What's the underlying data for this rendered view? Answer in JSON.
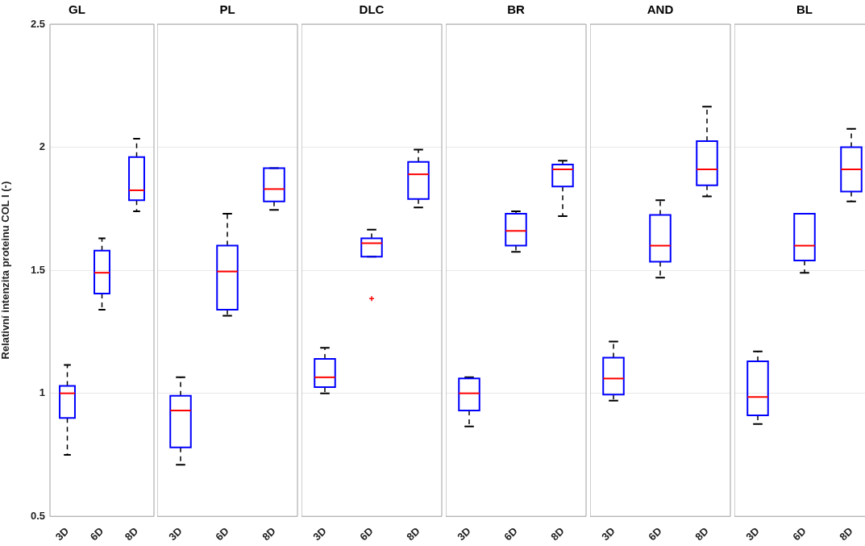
{
  "chart_data": [
    {
      "type": "box",
      "title": "GL",
      "ylabel": "Relativní intenzita proteinu COL I (-)",
      "categories": [
        "3D",
        "6D",
        "8D"
      ],
      "ylim": [
        0.5,
        2.5
      ],
      "yticks": [
        0.5,
        1,
        1.5,
        2,
        2.5
      ],
      "grid": "y",
      "series": [
        {
          "color": "#0000ff",
          "boxes": [
            {
              "low": 0.75,
              "q1": 0.9,
              "median": 1.0,
              "q3": 1.03,
              "high": 1.115
            },
            {
              "low": 1.34,
              "q1": 1.405,
              "median": 1.49,
              "q3": 1.58,
              "high": 1.63
            },
            {
              "low": 1.74,
              "q1": 1.785,
              "median": 1.825,
              "q3": 1.96,
              "high": 2.035
            }
          ]
        }
      ]
    },
    {
      "type": "box",
      "title": "PL",
      "categories": [
        "3D",
        "6D",
        "8D"
      ],
      "ylim": [
        0.5,
        2.5
      ],
      "yticks": [
        0.5,
        1,
        1.5,
        2,
        2.5
      ],
      "grid": "y",
      "tick_labels": "x",
      "series": [
        {
          "color": "#0000ff",
          "boxes": [
            {
              "low": 0.71,
              "q1": 0.78,
              "median": 0.93,
              "q3": 0.99,
              "high": 1.065
            },
            {
              "low": 1.315,
              "q1": 1.34,
              "median": 1.495,
              "q3": 1.6,
              "high": 1.73
            },
            {
              "low": 1.745,
              "q1": 1.78,
              "median": 1.83,
              "q3": 1.915,
              "high": 1.915
            }
          ]
        }
      ]
    },
    {
      "type": "box",
      "title": "DLC",
      "categories": [
        "3D",
        "6D",
        "8D"
      ],
      "ylim": [
        0.5,
        2.5
      ],
      "yticks": [
        0.5,
        1,
        1.5,
        2,
        2.5
      ],
      "grid": "y",
      "tick_labels": "x",
      "series": [
        {
          "color": "#0000ff",
          "boxes": [
            {
              "low": 1.0,
              "q1": 1.025,
              "median": 1.065,
              "q3": 1.14,
              "high": 1.185
            },
            {
              "low": 1.555,
              "q1": 1.555,
              "median": 1.61,
              "q3": 1.63,
              "high": 1.665,
              "outliers": [
                1.385
              ]
            },
            {
              "low": 1.755,
              "q1": 1.79,
              "median": 1.89,
              "q3": 1.94,
              "high": 1.99
            }
          ]
        }
      ]
    },
    {
      "type": "box",
      "title": "BR",
      "categories": [
        "3D",
        "6D",
        "8D"
      ],
      "ylim": [
        0.5,
        2.5
      ],
      "yticks": [
        0.5,
        1,
        1.5,
        2,
        2.5
      ],
      "grid": "y",
      "tick_labels": "x",
      "series": [
        {
          "color": "#0000ff",
          "boxes": [
            {
              "low": 0.865,
              "q1": 0.93,
              "median": 1.0,
              "q3": 1.06,
              "high": 1.065
            },
            {
              "low": 1.575,
              "q1": 1.6,
              "median": 1.66,
              "q3": 1.73,
              "high": 1.74
            },
            {
              "low": 1.72,
              "q1": 1.84,
              "median": 1.91,
              "q3": 1.93,
              "high": 1.945
            }
          ]
        }
      ]
    },
    {
      "type": "box",
      "title": "AND",
      "categories": [
        "3D",
        "6D",
        "8D"
      ],
      "ylim": [
        0.5,
        2.5
      ],
      "yticks": [
        0.5,
        1,
        1.5,
        2,
        2.5
      ],
      "grid": "y",
      "tick_labels": "x",
      "series": [
        {
          "color": "#0000ff",
          "boxes": [
            {
              "low": 0.97,
              "q1": 0.995,
              "median": 1.06,
              "q3": 1.145,
              "high": 1.21
            },
            {
              "low": 1.47,
              "q1": 1.535,
              "median": 1.6,
              "q3": 1.725,
              "high": 1.785
            },
            {
              "low": 1.8,
              "q1": 1.845,
              "median": 1.91,
              "q3": 2.025,
              "high": 2.165
            }
          ]
        }
      ]
    },
    {
      "type": "box",
      "title": "BL",
      "categories": [
        "3D",
        "6D",
        "8D"
      ],
      "ylim": [
        0.5,
        2.5
      ],
      "yticks": [
        0.5,
        1,
        1.5,
        2,
        2.5
      ],
      "grid": "y",
      "tick_labels": "x",
      "series": [
        {
          "color": "#0000ff",
          "boxes": [
            {
              "low": 0.875,
              "q1": 0.91,
              "median": 0.985,
              "q3": 1.13,
              "high": 1.17
            },
            {
              "low": 1.49,
              "q1": 1.54,
              "median": 1.6,
              "q3": 1.73,
              "high": 1.73
            },
            {
              "low": 1.78,
              "q1": 1.82,
              "median": 1.91,
              "q3": 2.0,
              "high": 2.075
            }
          ]
        }
      ]
    }
  ]
}
